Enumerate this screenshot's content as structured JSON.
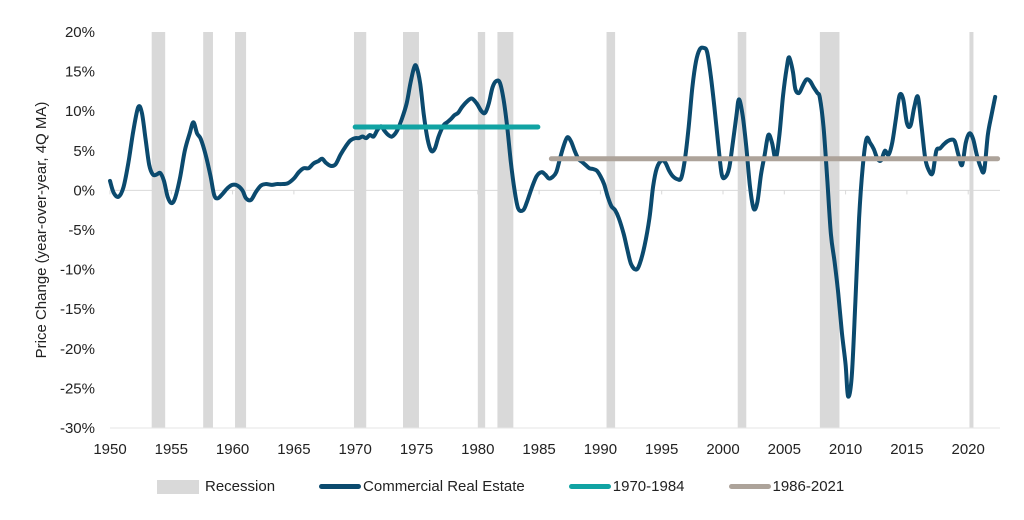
{
  "chart_data": {
    "type": "line",
    "title": "",
    "xlabel": "",
    "ylabel": "Price Change  (year-over-year,  4Q MA)",
    "xlim": [
      1950,
      2022.5
    ],
    "ylim": [
      -30,
      20
    ],
    "x_ticks": [
      1950,
      1955,
      1960,
      1965,
      1970,
      1975,
      1980,
      1985,
      1990,
      1995,
      2000,
      2005,
      2010,
      2015,
      2020
    ],
    "x_tick_labels": [
      "1950",
      "1955",
      "1960",
      "1965",
      "1970",
      "1975",
      "1980",
      "1985",
      "1990",
      "1995",
      "2000",
      "2005",
      "2010",
      "2015",
      "2020"
    ],
    "y_ticks": [
      20,
      15,
      10,
      5,
      0,
      -5,
      -10,
      -15,
      -20,
      -25,
      -30
    ],
    "y_tick_labels": [
      "20%",
      "15%",
      "10%",
      "5%",
      "0%",
      "-5%",
      "-10%",
      "-15%",
      "-20%",
      "-25%",
      "-30%"
    ],
    "grid": false,
    "legend_position": "bottom",
    "legend": [
      {
        "label": "Recession",
        "kind": "box",
        "color": "#d9d9d9"
      },
      {
        "label": "Commercial Real Estate",
        "kind": "line",
        "color": "#0b4a6e"
      },
      {
        "label": "1970-1984",
        "kind": "line",
        "color": "#11a3a3"
      },
      {
        "label": "1986-2021",
        "kind": "line",
        "color": "#ada39a"
      }
    ],
    "recessions": [
      [
        1953.4,
        1954.5
      ],
      [
        1957.6,
        1958.4
      ],
      [
        1960.2,
        1961.1
      ],
      [
        1969.9,
        1970.9
      ],
      [
        1973.9,
        1975.2
      ],
      [
        1980.0,
        1980.6
      ],
      [
        1981.6,
        1982.9
      ],
      [
        1990.5,
        1991.2
      ],
      [
        2001.2,
        2001.9
      ],
      [
        2007.9,
        2009.5
      ],
      [
        2020.1,
        2020.4
      ]
    ],
    "series": [
      {
        "name": "Commercial Real Estate",
        "color": "#0b4a6e",
        "points": [
          [
            1950.0,
            1.2
          ],
          [
            1950.3,
            -0.3
          ],
          [
            1950.7,
            -0.8
          ],
          [
            1951.1,
            0.4
          ],
          [
            1951.5,
            3.5
          ],
          [
            1951.9,
            7.5
          ],
          [
            1952.3,
            10.5
          ],
          [
            1952.6,
            9.8
          ],
          [
            1952.9,
            6.5
          ],
          [
            1953.2,
            3.2
          ],
          [
            1953.5,
            2.0
          ],
          [
            1953.8,
            2.0
          ],
          [
            1954.1,
            2.2
          ],
          [
            1954.4,
            1.2
          ],
          [
            1954.7,
            -0.8
          ],
          [
            1955.0,
            -1.6
          ],
          [
            1955.3,
            -1.0
          ],
          [
            1955.7,
            1.5
          ],
          [
            1956.1,
            5.0
          ],
          [
            1956.5,
            7.2
          ],
          [
            1956.8,
            8.6
          ],
          [
            1957.1,
            7.2
          ],
          [
            1957.4,
            6.5
          ],
          [
            1957.8,
            4.5
          ],
          [
            1958.2,
            1.8
          ],
          [
            1958.5,
            -0.6
          ],
          [
            1958.8,
            -1.0
          ],
          [
            1959.2,
            -0.4
          ],
          [
            1959.6,
            0.3
          ],
          [
            1960.0,
            0.7
          ],
          [
            1960.4,
            0.6
          ],
          [
            1960.8,
            0.0
          ],
          [
            1961.1,
            -1.0
          ],
          [
            1961.5,
            -1.2
          ],
          [
            1961.9,
            -0.2
          ],
          [
            1962.3,
            0.6
          ],
          [
            1962.7,
            0.8
          ],
          [
            1963.2,
            0.7
          ],
          [
            1963.6,
            0.8
          ],
          [
            1964.0,
            0.8
          ],
          [
            1964.5,
            0.9
          ],
          [
            1965.0,
            1.5
          ],
          [
            1965.4,
            2.3
          ],
          [
            1965.8,
            2.8
          ],
          [
            1966.2,
            2.8
          ],
          [
            1966.6,
            3.4
          ],
          [
            1967.0,
            3.7
          ],
          [
            1967.3,
            4.0
          ],
          [
            1967.6,
            3.5
          ],
          [
            1968.0,
            3.1
          ],
          [
            1968.4,
            3.3
          ],
          [
            1968.8,
            4.5
          ],
          [
            1969.2,
            5.5
          ],
          [
            1969.6,
            6.3
          ],
          [
            1970.0,
            6.6
          ],
          [
            1970.3,
            6.6
          ],
          [
            1970.6,
            6.8
          ],
          [
            1970.9,
            6.6
          ],
          [
            1971.2,
            7.0
          ],
          [
            1971.5,
            6.8
          ],
          [
            1971.8,
            7.6
          ],
          [
            1972.1,
            8.1
          ],
          [
            1972.4,
            7.5
          ],
          [
            1972.7,
            7.0
          ],
          [
            1973.0,
            6.8
          ],
          [
            1973.4,
            7.5
          ],
          [
            1973.8,
            9.0
          ],
          [
            1974.2,
            11.0
          ],
          [
            1974.5,
            13.5
          ],
          [
            1974.8,
            15.5
          ],
          [
            1975.0,
            15.6
          ],
          [
            1975.3,
            13.5
          ],
          [
            1975.6,
            9.5
          ],
          [
            1975.9,
            6.5
          ],
          [
            1976.2,
            5.0
          ],
          [
            1976.5,
            5.3
          ],
          [
            1976.8,
            6.8
          ],
          [
            1977.2,
            8.2
          ],
          [
            1977.5,
            8.6
          ],
          [
            1977.8,
            9.0
          ],
          [
            1978.1,
            9.5
          ],
          [
            1978.4,
            9.8
          ],
          [
            1978.7,
            10.5
          ],
          [
            1979.1,
            11.2
          ],
          [
            1979.5,
            11.6
          ],
          [
            1979.9,
            11.0
          ],
          [
            1980.3,
            10.0
          ],
          [
            1980.6,
            9.8
          ],
          [
            1980.9,
            11.0
          ],
          [
            1981.2,
            13.0
          ],
          [
            1981.5,
            13.8
          ],
          [
            1981.8,
            13.6
          ],
          [
            1982.1,
            11.5
          ],
          [
            1982.4,
            8.0
          ],
          [
            1982.7,
            3.5
          ],
          [
            1983.0,
            0.0
          ],
          [
            1983.3,
            -2.3
          ],
          [
            1983.7,
            -2.5
          ],
          [
            1984.0,
            -1.5
          ],
          [
            1984.4,
            0.3
          ],
          [
            1984.8,
            1.8
          ],
          [
            1985.2,
            2.3
          ],
          [
            1985.5,
            2.0
          ],
          [
            1985.8,
            1.5
          ],
          [
            1986.1,
            1.7
          ],
          [
            1986.4,
            2.3
          ],
          [
            1986.7,
            4.0
          ],
          [
            1987.0,
            5.6
          ],
          [
            1987.3,
            6.7
          ],
          [
            1987.6,
            6.2
          ],
          [
            1987.9,
            5.0
          ],
          [
            1988.2,
            4.0
          ],
          [
            1988.5,
            3.6
          ],
          [
            1988.8,
            3.2
          ],
          [
            1989.1,
            2.8
          ],
          [
            1989.4,
            2.7
          ],
          [
            1989.7,
            2.5
          ],
          [
            1990.0,
            1.8
          ],
          [
            1990.3,
            0.8
          ],
          [
            1990.6,
            -0.8
          ],
          [
            1990.9,
            -2.0
          ],
          [
            1991.2,
            -2.5
          ],
          [
            1991.5,
            -3.5
          ],
          [
            1991.9,
            -5.5
          ],
          [
            1992.2,
            -7.5
          ],
          [
            1992.5,
            -9.3
          ],
          [
            1992.9,
            -10.0
          ],
          [
            1993.2,
            -9.3
          ],
          [
            1993.6,
            -7.0
          ],
          [
            1994.0,
            -3.5
          ],
          [
            1994.3,
            0.5
          ],
          [
            1994.6,
            2.8
          ],
          [
            1995.0,
            3.8
          ],
          [
            1995.3,
            3.5
          ],
          [
            1995.6,
            2.5
          ],
          [
            1995.9,
            1.8
          ],
          [
            1996.3,
            1.4
          ],
          [
            1996.6,
            1.6
          ],
          [
            1996.9,
            4.0
          ],
          [
            1997.2,
            8.0
          ],
          [
            1997.5,
            13.0
          ],
          [
            1997.8,
            16.3
          ],
          [
            1998.1,
            17.8
          ],
          [
            1998.4,
            18.0
          ],
          [
            1998.7,
            17.5
          ],
          [
            1999.0,
            14.5
          ],
          [
            1999.3,
            10.5
          ],
          [
            1999.6,
            6.0
          ],
          [
            1999.9,
            2.0
          ],
          [
            2000.2,
            1.7
          ],
          [
            2000.5,
            2.8
          ],
          [
            2000.8,
            6.0
          ],
          [
            2001.1,
            9.5
          ],
          [
            2001.3,
            11.5
          ],
          [
            2001.6,
            9.5
          ],
          [
            2001.9,
            5.5
          ],
          [
            2002.2,
            0.5
          ],
          [
            2002.5,
            -2.3
          ],
          [
            2002.8,
            -1.5
          ],
          [
            2003.1,
            2.0
          ],
          [
            2003.4,
            4.5
          ],
          [
            2003.7,
            7.0
          ],
          [
            2004.0,
            6.0
          ],
          [
            2004.3,
            4.0
          ],
          [
            2004.6,
            7.0
          ],
          [
            2004.9,
            12.0
          ],
          [
            2005.2,
            15.5
          ],
          [
            2005.4,
            16.8
          ],
          [
            2005.7,
            15.0
          ],
          [
            2005.9,
            12.8
          ],
          [
            2006.2,
            12.3
          ],
          [
            2006.5,
            13.2
          ],
          [
            2006.8,
            14.0
          ],
          [
            2007.1,
            13.8
          ],
          [
            2007.4,
            13.0
          ],
          [
            2007.7,
            12.3
          ],
          [
            2007.9,
            11.7
          ],
          [
            2008.2,
            8.0
          ],
          [
            2008.5,
            1.5
          ],
          [
            2008.8,
            -5.5
          ],
          [
            2009.1,
            -9.0
          ],
          [
            2009.4,
            -13.0
          ],
          [
            2009.7,
            -18.0
          ],
          [
            2010.0,
            -22.0
          ],
          [
            2010.2,
            -26.0
          ],
          [
            2010.5,
            -23.5
          ],
          [
            2010.8,
            -14.0
          ],
          [
            2011.1,
            -3.5
          ],
          [
            2011.4,
            3.0
          ],
          [
            2011.7,
            6.5
          ],
          [
            2012.0,
            6.0
          ],
          [
            2012.3,
            5.2
          ],
          [
            2012.6,
            4.0
          ],
          [
            2012.9,
            3.8
          ],
          [
            2013.2,
            5.0
          ],
          [
            2013.5,
            4.5
          ],
          [
            2013.8,
            6.0
          ],
          [
            2014.1,
            9.0
          ],
          [
            2014.4,
            12.0
          ],
          [
            2014.7,
            11.5
          ],
          [
            2015.0,
            8.5
          ],
          [
            2015.3,
            8.2
          ],
          [
            2015.6,
            10.5
          ],
          [
            2015.9,
            11.8
          ],
          [
            2016.2,
            8.0
          ],
          [
            2016.5,
            4.0
          ],
          [
            2016.8,
            2.5
          ],
          [
            2017.1,
            2.2
          ],
          [
            2017.4,
            5.0
          ],
          [
            2017.7,
            5.3
          ],
          [
            2018.0,
            5.8
          ],
          [
            2018.3,
            6.2
          ],
          [
            2018.6,
            6.4
          ],
          [
            2018.9,
            6.2
          ],
          [
            2019.2,
            4.5
          ],
          [
            2019.5,
            3.2
          ],
          [
            2019.8,
            6.0
          ],
          [
            2020.1,
            7.2
          ],
          [
            2020.4,
            6.5
          ],
          [
            2020.7,
            4.5
          ],
          [
            2021.0,
            3.0
          ],
          [
            2021.3,
            2.5
          ],
          [
            2021.6,
            7.0
          ],
          [
            2021.9,
            9.5
          ],
          [
            2022.2,
            11.8
          ]
        ]
      },
      {
        "name": "1970-1984",
        "color": "#11a3a3",
        "points": [
          [
            1970.0,
            8.0
          ],
          [
            1984.9,
            8.0
          ]
        ]
      },
      {
        "name": "1986-2021",
        "color": "#ada39a",
        "points": [
          [
            1986.0,
            4.0
          ],
          [
            2022.4,
            4.0
          ]
        ]
      }
    ]
  }
}
